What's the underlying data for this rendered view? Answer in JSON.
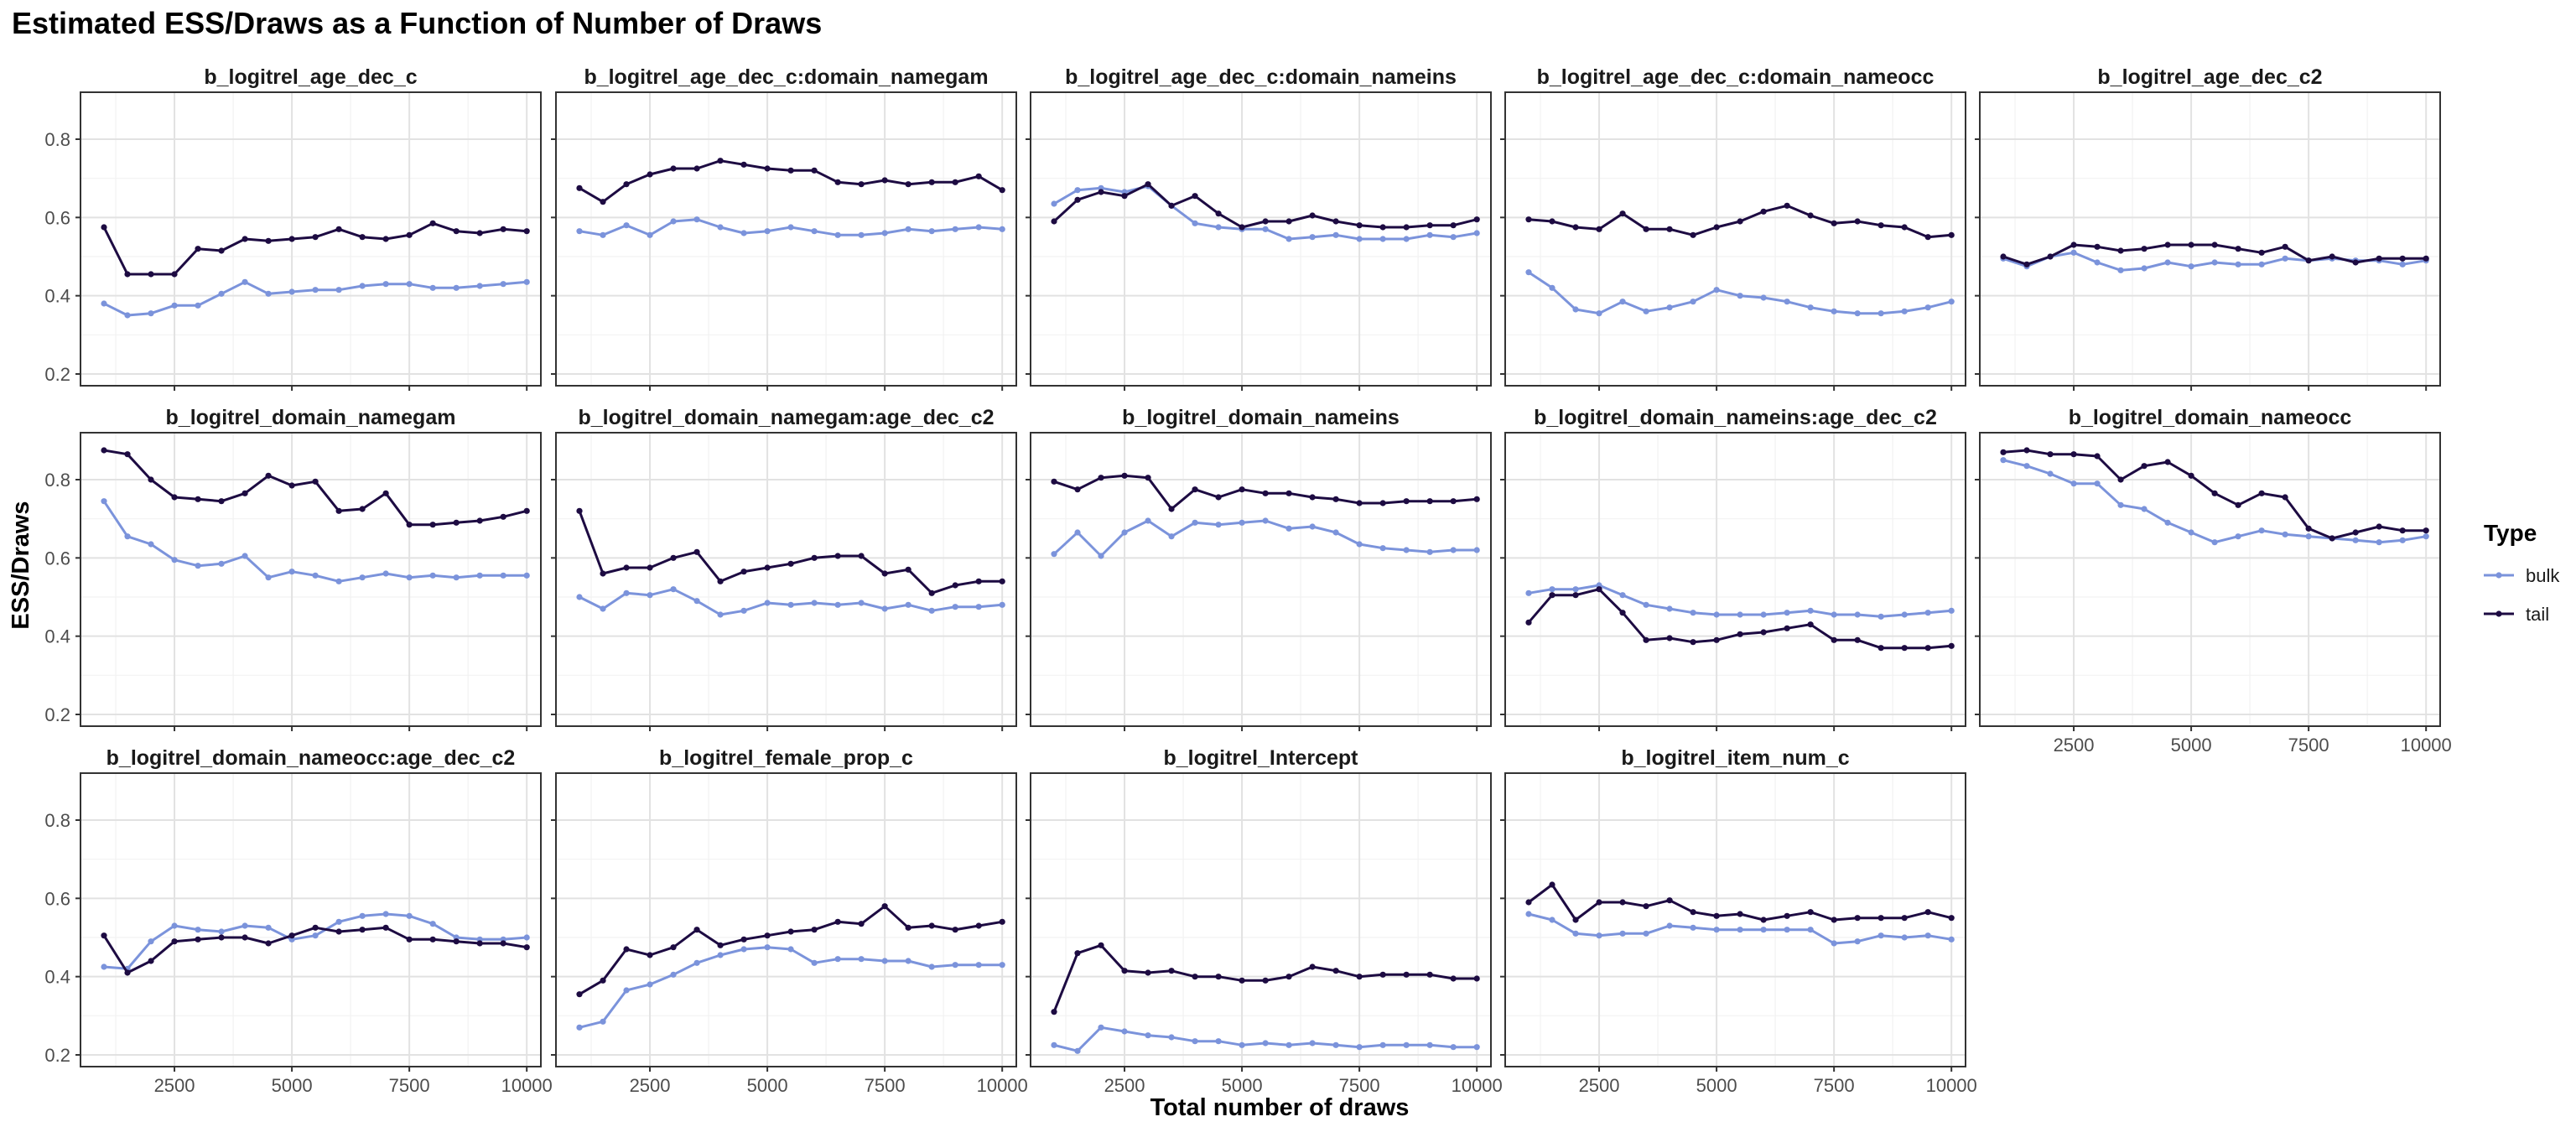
{
  "chart_data": {
    "type": "line",
    "title": "Estimated ESS/Draws as a Function of Number of Draws",
    "xlabel": "Total number of draws",
    "ylabel": "ESS/Draws",
    "xlim": [
      500,
      10300
    ],
    "ylim": [
      0.17,
      0.92
    ],
    "x_ticks": [
      2500,
      5000,
      7500,
      10000
    ],
    "y_ticks": [
      0.2,
      0.4,
      0.6,
      0.8
    ],
    "grid": true,
    "legend": {
      "title": "Type",
      "position": "right",
      "entries": [
        "bulk",
        "tail"
      ]
    },
    "colors": {
      "bulk": "#7b93db",
      "tail": "#1d0b42"
    },
    "x": [
      1000,
      1500,
      2000,
      2500,
      3000,
      3500,
      4000,
      4500,
      5000,
      5500,
      6000,
      6500,
      7000,
      7500,
      8000,
      8500,
      9000,
      9500,
      10000
    ],
    "panels": [
      {
        "label": "b_logitrel_age_dec_c",
        "series": [
          {
            "name": "bulk",
            "values": [
              0.38,
              0.35,
              0.355,
              0.375,
              0.375,
              0.405,
              0.435,
              0.405,
              0.41,
              0.415,
              0.415,
              0.425,
              0.43,
              0.43,
              0.42,
              0.42,
              0.425,
              0.43,
              0.435
            ]
          },
          {
            "name": "tail",
            "values": [
              0.575,
              0.455,
              0.455,
              0.455,
              0.52,
              0.515,
              0.545,
              0.54,
              0.545,
              0.55,
              0.57,
              0.55,
              0.545,
              0.555,
              0.585,
              0.565,
              0.56,
              0.57,
              0.565
            ]
          }
        ]
      },
      {
        "label": "b_logitrel_age_dec_c:domain_namegam",
        "series": [
          {
            "name": "bulk",
            "values": [
              0.565,
              0.555,
              0.58,
              0.555,
              0.59,
              0.595,
              0.575,
              0.56,
              0.565,
              0.575,
              0.565,
              0.555,
              0.555,
              0.56,
              0.57,
              0.565,
              0.57,
              0.575,
              0.57
            ]
          },
          {
            "name": "tail",
            "values": [
              0.675,
              0.64,
              0.685,
              0.71,
              0.725,
              0.725,
              0.745,
              0.735,
              0.725,
              0.72,
              0.72,
              0.69,
              0.685,
              0.695,
              0.685,
              0.69,
              0.69,
              0.705,
              0.67
            ]
          }
        ]
      },
      {
        "label": "b_logitrel_age_dec_c:domain_nameins",
        "series": [
          {
            "name": "bulk",
            "values": [
              0.635,
              0.67,
              0.675,
              0.665,
              0.68,
              0.63,
              0.585,
              0.575,
              0.57,
              0.57,
              0.545,
              0.55,
              0.555,
              0.545,
              0.545,
              0.545,
              0.555,
              0.55,
              0.56
            ]
          },
          {
            "name": "tail",
            "values": [
              0.59,
              0.645,
              0.665,
              0.655,
              0.685,
              0.63,
              0.655,
              0.61,
              0.575,
              0.59,
              0.59,
              0.605,
              0.59,
              0.58,
              0.575,
              0.575,
              0.58,
              0.58,
              0.595
            ]
          }
        ]
      },
      {
        "label": "b_logitrel_age_dec_c:domain_nameocc",
        "series": [
          {
            "name": "bulk",
            "values": [
              0.46,
              0.42,
              0.365,
              0.355,
              0.385,
              0.36,
              0.37,
              0.385,
              0.415,
              0.4,
              0.395,
              0.385,
              0.37,
              0.36,
              0.355,
              0.355,
              0.36,
              0.37,
              0.385
            ]
          },
          {
            "name": "tail",
            "values": [
              0.595,
              0.59,
              0.575,
              0.57,
              0.61,
              0.57,
              0.57,
              0.555,
              0.575,
              0.59,
              0.615,
              0.63,
              0.605,
              0.585,
              0.59,
              0.58,
              0.575,
              0.55,
              0.555
            ]
          }
        ]
      },
      {
        "label": "b_logitrel_age_dec_c2",
        "series": [
          {
            "name": "bulk",
            "values": [
              0.495,
              0.475,
              0.5,
              0.51,
              0.485,
              0.465,
              0.47,
              0.485,
              0.475,
              0.485,
              0.48,
              0.48,
              0.495,
              0.49,
              0.495,
              0.49,
              0.49,
              0.48,
              0.49
            ]
          },
          {
            "name": "tail",
            "values": [
              0.5,
              0.48,
              0.5,
              0.53,
              0.525,
              0.515,
              0.52,
              0.53,
              0.53,
              0.53,
              0.52,
              0.51,
              0.525,
              0.49,
              0.5,
              0.485,
              0.495,
              0.495,
              0.495
            ]
          }
        ]
      },
      {
        "label": "b_logitrel_domain_namegam",
        "series": [
          {
            "name": "bulk",
            "values": [
              0.745,
              0.655,
              0.635,
              0.595,
              0.58,
              0.585,
              0.605,
              0.55,
              0.565,
              0.555,
              0.54,
              0.55,
              0.56,
              0.55,
              0.555,
              0.55,
              0.555,
              0.555,
              0.555
            ]
          },
          {
            "name": "tail",
            "values": [
              0.875,
              0.865,
              0.8,
              0.755,
              0.75,
              0.745,
              0.765,
              0.81,
              0.785,
              0.795,
              0.72,
              0.725,
              0.765,
              0.685,
              0.685,
              0.69,
              0.695,
              0.705,
              0.72
            ]
          }
        ]
      },
      {
        "label": "b_logitrel_domain_namegam:age_dec_c2",
        "series": [
          {
            "name": "bulk",
            "values": [
              0.5,
              0.47,
              0.51,
              0.505,
              0.52,
              0.49,
              0.455,
              0.465,
              0.485,
              0.48,
              0.485,
              0.48,
              0.485,
              0.47,
              0.48,
              0.465,
              0.475,
              0.475,
              0.48
            ]
          },
          {
            "name": "tail",
            "values": [
              0.72,
              0.56,
              0.575,
              0.575,
              0.6,
              0.615,
              0.54,
              0.565,
              0.575,
              0.585,
              0.6,
              0.605,
              0.605,
              0.56,
              0.57,
              0.51,
              0.53,
              0.54,
              0.54
            ]
          }
        ]
      },
      {
        "label": "b_logitrel_domain_nameins",
        "series": [
          {
            "name": "bulk",
            "values": [
              0.61,
              0.665,
              0.605,
              0.665,
              0.695,
              0.655,
              0.69,
              0.685,
              0.69,
              0.695,
              0.675,
              0.68,
              0.665,
              0.635,
              0.625,
              0.62,
              0.615,
              0.62,
              0.62
            ]
          },
          {
            "name": "tail",
            "values": [
              0.795,
              0.775,
              0.805,
              0.81,
              0.805,
              0.725,
              0.775,
              0.755,
              0.775,
              0.765,
              0.765,
              0.755,
              0.75,
              0.74,
              0.74,
              0.745,
              0.745,
              0.745,
              0.75
            ]
          }
        ]
      },
      {
        "label": "b_logitrel_domain_nameins:age_dec_c2",
        "series": [
          {
            "name": "bulk",
            "values": [
              0.51,
              0.52,
              0.52,
              0.53,
              0.505,
              0.48,
              0.47,
              0.46,
              0.455,
              0.455,
              0.455,
              0.46,
              0.465,
              0.455,
              0.455,
              0.45,
              0.455,
              0.46,
              0.465
            ]
          },
          {
            "name": "tail",
            "values": [
              0.435,
              0.505,
              0.505,
              0.52,
              0.46,
              0.39,
              0.395,
              0.385,
              0.39,
              0.405,
              0.41,
              0.42,
              0.43,
              0.39,
              0.39,
              0.37,
              0.37,
              0.37,
              0.375
            ]
          }
        ]
      },
      {
        "label": "b_logitrel_domain_nameocc",
        "series": [
          {
            "name": "bulk",
            "values": [
              0.85,
              0.835,
              0.815,
              0.79,
              0.79,
              0.735,
              0.725,
              0.69,
              0.665,
              0.64,
              0.655,
              0.67,
              0.66,
              0.655,
              0.65,
              0.645,
              0.64,
              0.645,
              0.655
            ]
          },
          {
            "name": "tail",
            "values": [
              0.87,
              0.875,
              0.865,
              0.865,
              0.86,
              0.8,
              0.835,
              0.845,
              0.81,
              0.765,
              0.735,
              0.765,
              0.755,
              0.675,
              0.65,
              0.665,
              0.68,
              0.67,
              0.67
            ]
          }
        ]
      },
      {
        "label": "b_logitrel_domain_nameocc:age_dec_c2",
        "series": [
          {
            "name": "bulk",
            "values": [
              0.425,
              0.42,
              0.49,
              0.53,
              0.52,
              0.515,
              0.53,
              0.525,
              0.495,
              0.505,
              0.54,
              0.555,
              0.56,
              0.555,
              0.535,
              0.5,
              0.495,
              0.495,
              0.5
            ]
          },
          {
            "name": "tail",
            "values": [
              0.505,
              0.41,
              0.44,
              0.49,
              0.495,
              0.5,
              0.5,
              0.485,
              0.505,
              0.525,
              0.515,
              0.52,
              0.525,
              0.495,
              0.495,
              0.49,
              0.485,
              0.485,
              0.475
            ]
          }
        ]
      },
      {
        "label": "b_logitrel_female_prop_c",
        "series": [
          {
            "name": "bulk",
            "values": [
              0.27,
              0.285,
              0.365,
              0.38,
              0.405,
              0.435,
              0.455,
              0.47,
              0.475,
              0.47,
              0.435,
              0.445,
              0.445,
              0.44,
              0.44,
              0.425,
              0.43,
              0.43,
              0.43
            ]
          },
          {
            "name": "tail",
            "values": [
              0.355,
              0.39,
              0.47,
              0.455,
              0.475,
              0.52,
              0.48,
              0.495,
              0.505,
              0.515,
              0.52,
              0.54,
              0.535,
              0.58,
              0.525,
              0.53,
              0.52,
              0.53,
              0.54
            ]
          }
        ]
      },
      {
        "label": "b_logitrel_Intercept",
        "series": [
          {
            "name": "bulk",
            "values": [
              0.225,
              0.21,
              0.27,
              0.26,
              0.25,
              0.245,
              0.235,
              0.235,
              0.225,
              0.23,
              0.225,
              0.23,
              0.225,
              0.22,
              0.225,
              0.225,
              0.225,
              0.22,
              0.22
            ]
          },
          {
            "name": "tail",
            "values": [
              0.31,
              0.46,
              0.48,
              0.415,
              0.41,
              0.415,
              0.4,
              0.4,
              0.39,
              0.39,
              0.4,
              0.425,
              0.415,
              0.4,
              0.405,
              0.405,
              0.405,
              0.395,
              0.395
            ]
          }
        ]
      },
      {
        "label": "b_logitrel_item_num_c",
        "series": [
          {
            "name": "bulk",
            "values": [
              0.56,
              0.545,
              0.51,
              0.505,
              0.51,
              0.51,
              0.53,
              0.525,
              0.52,
              0.52,
              0.52,
              0.52,
              0.52,
              0.485,
              0.49,
              0.505,
              0.5,
              0.505,
              0.495
            ]
          },
          {
            "name": "tail",
            "values": [
              0.59,
              0.635,
              0.545,
              0.59,
              0.59,
              0.58,
              0.595,
              0.565,
              0.555,
              0.56,
              0.545,
              0.555,
              0.565,
              0.545,
              0.55,
              0.55,
              0.55,
              0.565,
              0.55
            ]
          }
        ]
      }
    ]
  }
}
